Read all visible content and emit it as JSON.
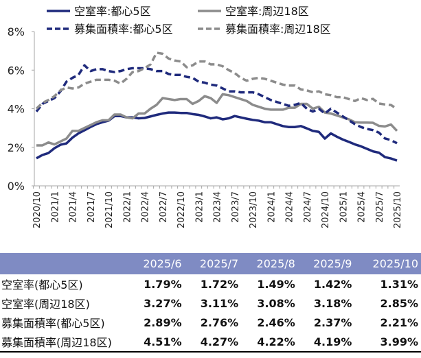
{
  "chart_data": {
    "type": "line",
    "title": "",
    "xlabel": "",
    "ylabel": "",
    "ylim": [
      0,
      8
    ],
    "y_ticks": [
      "0%",
      "2%",
      "4%",
      "6%",
      "8%"
    ],
    "grid": false,
    "legend_placement": "top",
    "x_start": "2020/10",
    "x_end": "2025/10",
    "x_tick_labels": [
      "2020/10",
      "2021/1",
      "2021/4",
      "2021/7",
      "2021/10",
      "2022/1",
      "2022/4",
      "2022/7",
      "2022/10",
      "2023/1",
      "2023/4",
      "2023/7",
      "2023/10",
      "2024/1",
      "2024/4",
      "2024/7",
      "2024/10",
      "2025/1",
      "2025/4",
      "2025/7",
      "2025/10"
    ],
    "series": [
      {
        "name": "空室率:都心5区",
        "color": "#1f2a7c",
        "dash": false,
        "values": [
          1.43,
          1.6,
          1.7,
          1.95,
          2.13,
          2.2,
          2.5,
          2.72,
          2.88,
          3.05,
          3.2,
          3.3,
          3.38,
          3.62,
          3.62,
          3.55,
          3.55,
          3.5,
          3.52,
          3.6,
          3.68,
          3.75,
          3.8,
          3.8,
          3.78,
          3.78,
          3.72,
          3.68,
          3.6,
          3.5,
          3.55,
          3.45,
          3.5,
          3.62,
          3.55,
          3.48,
          3.42,
          3.38,
          3.3,
          3.3,
          3.2,
          3.1,
          3.05,
          3.05,
          3.1,
          2.98,
          2.85,
          2.8,
          2.45,
          2.72,
          2.55,
          2.4,
          2.28,
          2.15,
          2.05,
          1.92,
          1.79,
          1.72,
          1.49,
          1.42,
          1.31
        ]
      },
      {
        "name": "空室率:周辺18区",
        "color": "#8c8c8c",
        "dash": false,
        "values": [
          2.1,
          2.1,
          2.25,
          2.15,
          2.3,
          2.45,
          2.85,
          2.85,
          3.0,
          3.15,
          3.3,
          3.4,
          3.4,
          3.7,
          3.7,
          3.55,
          3.5,
          3.75,
          3.75,
          4.0,
          4.2,
          4.55,
          4.5,
          4.45,
          4.5,
          4.5,
          4.25,
          4.4,
          4.65,
          4.55,
          4.3,
          4.75,
          4.7,
          4.6,
          4.5,
          4.4,
          4.2,
          4.1,
          4.0,
          3.95,
          3.95,
          3.95,
          4.05,
          4.05,
          4.25,
          4.25,
          4.0,
          4.1,
          3.8,
          3.75,
          3.65,
          3.55,
          3.45,
          3.3,
          3.28,
          3.28,
          3.27,
          3.11,
          3.08,
          3.18,
          2.85
        ]
      },
      {
        "name": "募集面積率:都心5区",
        "color": "#1f2a7c",
        "dash": true,
        "values": [
          3.85,
          4.25,
          4.4,
          4.55,
          4.9,
          5.4,
          5.6,
          5.75,
          6.25,
          5.95,
          6.05,
          6.05,
          5.95,
          5.9,
          5.95,
          6.05,
          6.1,
          6.1,
          6.1,
          6.05,
          5.95,
          5.95,
          5.8,
          5.75,
          5.75,
          5.65,
          5.6,
          5.4,
          5.35,
          5.25,
          5.2,
          5.05,
          4.9,
          4.9,
          4.85,
          4.85,
          4.85,
          4.75,
          4.6,
          4.45,
          4.35,
          4.25,
          4.15,
          4.2,
          4.3,
          4.0,
          3.85,
          4.0,
          3.75,
          4.0,
          3.8,
          3.6,
          3.4,
          3.2,
          3.05,
          2.95,
          2.89,
          2.76,
          2.46,
          2.37,
          2.21
        ]
      },
      {
        "name": "募集面積率:周辺18区",
        "color": "#8c8c8c",
        "dash": true,
        "values": [
          4.0,
          4.3,
          4.45,
          4.65,
          4.95,
          5.1,
          5.05,
          5.1,
          5.3,
          5.4,
          5.5,
          5.5,
          5.5,
          5.45,
          5.3,
          5.55,
          5.9,
          5.95,
          6.1,
          6.3,
          6.9,
          6.85,
          6.6,
          6.5,
          6.45,
          6.15,
          6.25,
          6.45,
          6.45,
          6.3,
          6.3,
          6.2,
          6.0,
          5.85,
          5.6,
          5.45,
          5.55,
          5.6,
          5.55,
          5.45,
          5.35,
          5.25,
          5.2,
          5.2,
          5.0,
          4.95,
          4.85,
          4.9,
          4.75,
          4.7,
          4.6,
          4.6,
          4.5,
          4.4,
          4.55,
          4.45,
          4.51,
          4.27,
          4.22,
          4.19,
          3.99
        ]
      }
    ]
  },
  "table": {
    "columns": [
      "2025/6",
      "2025/7",
      "2025/8",
      "2025/9",
      "2025/10"
    ],
    "rows": [
      {
        "label": "空室率(都心5区)",
        "values": [
          "1.79%",
          "1.72%",
          "1.49%",
          "1.42%",
          "1.31%"
        ]
      },
      {
        "label": "空室率(周辺18区)",
        "values": [
          "3.27%",
          "3.11%",
          "3.08%",
          "3.18%",
          "2.85%"
        ]
      },
      {
        "label": "募集面積率(都心5区)",
        "values": [
          "2.89%",
          "2.76%",
          "2.46%",
          "2.37%",
          "2.21%"
        ]
      },
      {
        "label": "募集面積率(周辺18区)",
        "values": [
          "4.51%",
          "4.27%",
          "4.22%",
          "4.19%",
          "3.99%"
        ]
      }
    ],
    "header_color": "#7f8bc3"
  }
}
